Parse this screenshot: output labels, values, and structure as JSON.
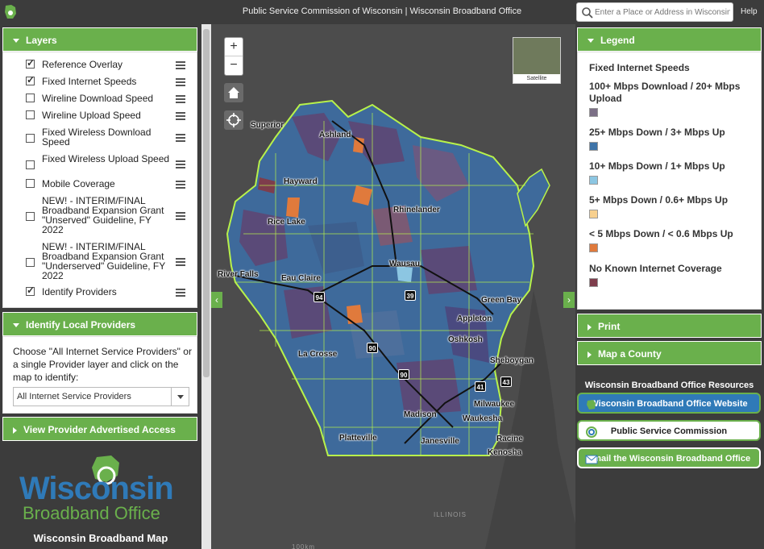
{
  "header": {
    "title": "Public Service Commission of Wisconsin | Wisconsin Broadband Office",
    "search_placeholder": "Enter a Place or Address in Wisconsin",
    "help_label": "Help"
  },
  "layers": {
    "title": "Layers",
    "items": [
      {
        "label": "Reference Overlay",
        "checked": true
      },
      {
        "label": "Fixed Internet Speeds",
        "checked": true
      },
      {
        "label": "Wireline Download Speed",
        "checked": false
      },
      {
        "label": "Wireline Upload Speed",
        "checked": false
      },
      {
        "label": "Fixed Wireless Download Speed",
        "checked": false
      },
      {
        "label": "Fixed Wireless Upload Speed",
        "checked": false
      },
      {
        "label": "Mobile Coverage",
        "checked": false
      },
      {
        "label": "NEW! - INTERIM/FINAL Broadband Expansion Grant \"Unserved\" Guideline, FY 2022",
        "checked": false
      },
      {
        "label": "NEW! - INTERIM/FINAL Broadband Expansion Grant \"Underserved\" Guideline, FY 2022",
        "checked": false
      },
      {
        "label": "Identify Providers",
        "checked": true
      }
    ]
  },
  "identify": {
    "title": "Identify Local Providers",
    "instructions": "Choose \"All Internet Service Providers\" or a single Provider layer and click on the map to identify:",
    "select_value": "All Internet Service Providers"
  },
  "view_provider": {
    "title": "View Provider Advertised Access"
  },
  "brand": {
    "line1": "Wisconsin",
    "line2": "Broadband Office",
    "map_title": "Wisconsin Broadband Map"
  },
  "map": {
    "zoom_in": "+",
    "zoom_out": "−",
    "basemap_label": "Satellite",
    "cities": [
      {
        "name": "Superior"
      },
      {
        "name": "Ashland"
      },
      {
        "name": "Hayward"
      },
      {
        "name": "Rhinelander"
      },
      {
        "name": "Rice Lake"
      },
      {
        "name": "Wausau"
      },
      {
        "name": "River Falls"
      },
      {
        "name": "Eau Claire"
      },
      {
        "name": "Green Bay"
      },
      {
        "name": "Appleton"
      },
      {
        "name": "Oshkosh"
      },
      {
        "name": "La Crosse"
      },
      {
        "name": "Sheboygan"
      },
      {
        "name": "Milwaukee"
      },
      {
        "name": "Madison"
      },
      {
        "name": "Waukesha"
      },
      {
        "name": "Platteville"
      },
      {
        "name": "Janesville"
      },
      {
        "name": "Racine"
      },
      {
        "name": "Kenosha"
      }
    ],
    "highways": [
      "94",
      "39",
      "90",
      "90",
      "41",
      "43"
    ],
    "faint_label": "ILLINOIS",
    "scale_label": "100km"
  },
  "legend": {
    "title": "Legend",
    "subtitle": "Fixed Internet Speeds",
    "items": [
      {
        "label": "100+ Mbps Download / 20+ Mbps Upload",
        "color": "#7b6f86"
      },
      {
        "label": "25+ Mbps Down / 3+ Mbps Up",
        "color": "#3f74a8"
      },
      {
        "label": "10+ Mbps Down / 1+ Mbps Up",
        "color": "#8cc6e2"
      },
      {
        "label": "5+ Mbps Down / 0.6+ Mbps Up",
        "color": "#f7d08f"
      },
      {
        "label": "< 5 Mbps Down / < 0.6 Mbps Up",
        "color": "#e07a3c"
      },
      {
        "label": "No Known Internet Coverage",
        "color": "#7e3d4c"
      }
    ]
  },
  "print": {
    "title": "Print"
  },
  "county": {
    "title": "Map a County"
  },
  "resources": {
    "title": "Wisconsin Broadband Office Resources",
    "website": "Wisconsin Broadband Office Website",
    "psc": "Public Service Commission",
    "email": "Email the Wisconsin Broadband Office"
  },
  "colors": {
    "accent": "#6ab04c",
    "header_bg": "#3c3c3c",
    "link_blue": "#2f7ab8"
  }
}
